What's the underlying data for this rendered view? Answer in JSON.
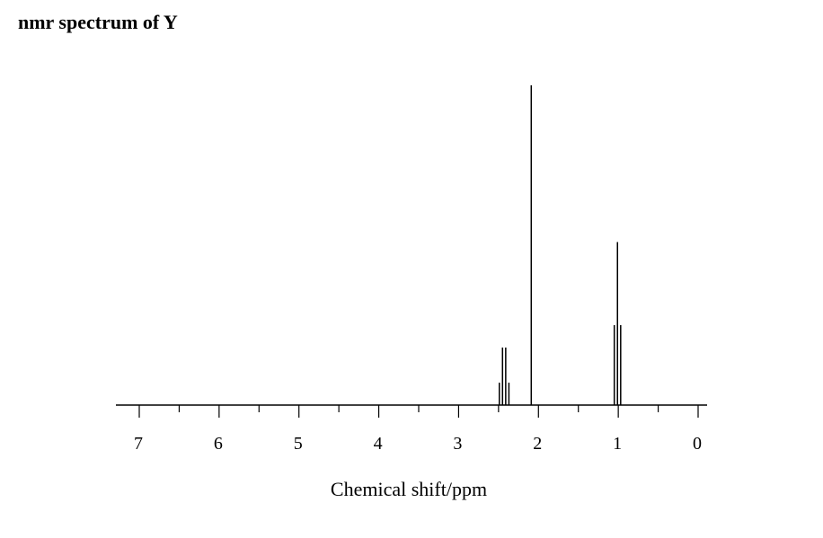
{
  "chart_data": {
    "type": "line",
    "title": "nmr spectrum of Y",
    "xlabel": "Chemical shift/ppm",
    "ylabel": "",
    "xlim": [
      7.0,
      0.0
    ],
    "x_reversed": true,
    "major_ticks": [
      7,
      6,
      5,
      4,
      3,
      2,
      1,
      0
    ],
    "tick_labels": [
      "7",
      "6",
      "5",
      "4",
      "3",
      "2",
      "1",
      "0"
    ],
    "minor_ticks": [
      6.5,
      5.5,
      4.5,
      3.5,
      2.5,
      1.5,
      0.5
    ],
    "grid": false,
    "legend": "none",
    "series": [
      {
        "peaks": [
          {
            "x": 2.49,
            "y": 0.07
          },
          {
            "x": 2.45,
            "y": 0.18
          },
          {
            "x": 2.41,
            "y": 0.18
          },
          {
            "x": 2.37,
            "y": 0.07
          },
          {
            "x": 2.09,
            "y": 1.0
          },
          {
            "x": 1.05,
            "y": 0.25
          },
          {
            "x": 1.01,
            "y": 0.51
          },
          {
            "x": 0.97,
            "y": 0.25
          }
        ]
      }
    ]
  }
}
